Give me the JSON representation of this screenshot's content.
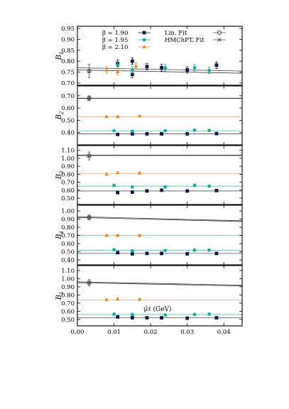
{
  "colors": {
    "b190": "#0b1640",
    "b195": "#1aa89a",
    "b210": "#e8851e",
    "fit": "#555555",
    "frame": "#000000"
  },
  "legend": {
    "entries": [
      {
        "label": "β = 1.90",
        "series": "b190",
        "marker": "square"
      },
      {
        "label": "β = 1.95",
        "series": "b195",
        "marker": "circle"
      },
      {
        "label": "β = 2.10",
        "series": "b210",
        "marker": "triangle"
      },
      {
        "label": "Lin. Fit",
        "series": "fit",
        "marker": "open-circle"
      },
      {
        "label": "HMChPT. Fit",
        "series": "fit",
        "marker": "cross"
      }
    ]
  },
  "chart_data": [
    {
      "type": "scatter",
      "ylabel": "B1",
      "ylim": [
        0.69,
        0.96
      ],
      "yticks": [
        "0.70",
        "0.75",
        "0.80",
        "0.85",
        "0.90",
        "0.95"
      ],
      "xlim": [
        0.0,
        0.045
      ],
      "xticks": [],
      "xlabel": "",
      "fit": {
        "x": [
          0.0,
          0.045
        ],
        "y": [
          0.77,
          0.755
        ],
        "y2": [
          0.76,
          0.745
        ]
      },
      "series": [
        {
          "name": "β = 1.90",
          "color_key": "b190",
          "marker": "square",
          "x": [
            0.011,
            0.015,
            0.015,
            0.019,
            0.023,
            0.03,
            0.038
          ],
          "y": [
            0.79,
            0.8,
            0.74,
            0.775,
            0.77,
            0.76,
            0.782
          ],
          "err": [
            0.015,
            0.015,
            0.015,
            0.015,
            0.015,
            0.015,
            0.015
          ]
        },
        {
          "name": "β = 1.95",
          "color_key": "b195",
          "marker": "circle",
          "x": [
            0.011,
            0.015,
            0.024,
            0.032,
            0.036
          ],
          "y": [
            0.782,
            0.76,
            0.77,
            0.77,
            0.758
          ],
          "err": [
            0.015,
            0.015,
            0.015,
            0.015,
            0.015
          ]
        },
        {
          "name": "β = 2.10",
          "color_key": "b210",
          "marker": "triangle",
          "x": [
            0.008,
            0.011,
            0.016
          ],
          "y": [
            0.76,
            0.752,
            0.778
          ],
          "err": [
            0.015,
            0.015,
            0.015
          ]
        },
        {
          "name": "",
          "color_key": "fit",
          "marker": "open-circle",
          "x": [
            0.0032
          ],
          "y": [
            0.755
          ],
          "err": [
            0.03
          ]
        }
      ]
    },
    {
      "type": "scatter",
      "ylabel": "B2",
      "ylim": [
        0.3,
        0.78
      ],
      "yticks": [
        "0.40",
        "0.50",
        "0.60",
        "0.70"
      ],
      "xlim": [
        0.0,
        0.045
      ],
      "xticks": [],
      "xlabel": "",
      "fit": {
        "x": [
          0.0,
          0.045
        ],
        "y": [
          0.68,
          0.68
        ],
        "y2": [
          0.678,
          0.678
        ]
      },
      "bands": [
        {
          "color_key": "b210",
          "y": 0.53
        },
        {
          "color_key": "b195",
          "y": 0.415
        },
        {
          "color_key": "b190",
          "y": 0.39
        }
      ],
      "series": [
        {
          "name": "β = 1.90",
          "color_key": "b190",
          "marker": "square",
          "x": [
            0.011,
            0.015,
            0.019,
            0.023,
            0.03,
            0.038
          ],
          "y": [
            0.385,
            0.39,
            0.39,
            0.39,
            0.39,
            0.392
          ],
          "err": [
            0.006,
            0.006,
            0.006,
            0.006,
            0.006,
            0.006
          ]
        },
        {
          "name": "β = 1.95",
          "color_key": "b195",
          "marker": "circle",
          "x": [
            0.01,
            0.015,
            0.024,
            0.032,
            0.036
          ],
          "y": [
            0.415,
            0.41,
            0.415,
            0.42,
            0.418
          ],
          "err": [
            0.006,
            0.006,
            0.006,
            0.006,
            0.006
          ]
        },
        {
          "name": "β = 2.10",
          "color_key": "b210",
          "marker": "triangle",
          "x": [
            0.008,
            0.011,
            0.017
          ],
          "y": [
            0.53,
            0.53,
            0.535
          ],
          "err": [
            0.006,
            0.006,
            0.006
          ]
        },
        {
          "name": "",
          "color_key": "fit",
          "marker": "open-circle",
          "x": [
            0.0032
          ],
          "y": [
            0.68
          ],
          "err": [
            0.02
          ]
        }
      ]
    },
    {
      "type": "scatter",
      "ylabel": "B3",
      "ylim": [
        0.42,
        1.16
      ],
      "yticks": [
        "0.50",
        "0.60",
        "0.70",
        "0.80",
        "0.90",
        "1.00",
        "1.10"
      ],
      "xlim": [
        0.0,
        0.045
      ],
      "xticks": [],
      "xlabel": "",
      "fit": {
        "x": [
          0.0,
          0.045
        ],
        "y": [
          1.04,
          1.04
        ],
        "y2": [
          1.035,
          1.035
        ]
      },
      "bands": [
        {
          "color_key": "b210",
          "y": 0.81
        },
        {
          "color_key": "b195",
          "y": 0.65
        },
        {
          "color_key": "b190",
          "y": 0.59
        }
      ],
      "series": [
        {
          "name": "β = 1.90",
          "color_key": "b190",
          "marker": "square",
          "x": [
            0.011,
            0.015,
            0.019,
            0.023,
            0.03,
            0.038
          ],
          "y": [
            0.57,
            0.575,
            0.59,
            0.6,
            0.59,
            0.595
          ],
          "err": [
            0.015,
            0.015,
            0.015,
            0.015,
            0.015,
            0.015
          ]
        },
        {
          "name": "β = 1.95",
          "color_key": "b195",
          "marker": "circle",
          "x": [
            0.01,
            0.015,
            0.024,
            0.032,
            0.036
          ],
          "y": [
            0.66,
            0.64,
            0.64,
            0.66,
            0.65
          ],
          "err": [
            0.015,
            0.015,
            0.015,
            0.015,
            0.015
          ]
        },
        {
          "name": "β = 2.10",
          "color_key": "b210",
          "marker": "triangle",
          "x": [
            0.008,
            0.011,
            0.017
          ],
          "y": [
            0.8,
            0.82,
            0.815
          ],
          "err": [
            0.015,
            0.015,
            0.015
          ]
        },
        {
          "name": "",
          "color_key": "fit",
          "marker": "open-circle",
          "x": [
            0.0032
          ],
          "y": [
            1.03
          ],
          "err": [
            0.05
          ]
        }
      ]
    },
    {
      "type": "scatter",
      "ylabel": "B4",
      "ylim": [
        0.34,
        1.07
      ],
      "yticks": [
        "0.40",
        "0.50",
        "0.60",
        "0.70",
        "0.80",
        "0.90",
        "1.00"
      ],
      "xlim": [
        0.0,
        0.045
      ],
      "xticks": [],
      "xlabel": "",
      "fit": {
        "x": [
          0.0,
          0.045
        ],
        "y": [
          0.93,
          0.88
        ],
        "y2": [
          0.92,
          0.87
        ]
      },
      "bands": [
        {
          "color_key": "b210",
          "y": 0.7
        },
        {
          "color_key": "b195",
          "y": 0.52
        },
        {
          "color_key": "b190",
          "y": 0.48
        }
      ],
      "series": [
        {
          "name": "β = 1.90",
          "color_key": "b190",
          "marker": "square",
          "x": [
            0.011,
            0.015,
            0.019,
            0.023,
            0.03,
            0.038
          ],
          "y": [
            0.49,
            0.475,
            0.48,
            0.48,
            0.475,
            0.48
          ],
          "err": [
            0.01,
            0.01,
            0.01,
            0.01,
            0.01,
            0.01
          ]
        },
        {
          "name": "β = 1.95",
          "color_key": "b195",
          "marker": "circle",
          "x": [
            0.01,
            0.015,
            0.024,
            0.032,
            0.036
          ],
          "y": [
            0.525,
            0.51,
            0.515,
            0.52,
            0.52
          ],
          "err": [
            0.01,
            0.01,
            0.01,
            0.01,
            0.01
          ]
        },
        {
          "name": "β = 2.10",
          "color_key": "b210",
          "marker": "triangle",
          "x": [
            0.008,
            0.011,
            0.017
          ],
          "y": [
            0.7,
            0.7,
            0.7
          ],
          "err": [
            0.01,
            0.01,
            0.01
          ]
        },
        {
          "name": "",
          "color_key": "fit",
          "marker": "open-circle",
          "x": [
            0.0032
          ],
          "y": [
            0.92
          ],
          "err": [
            0.03
          ]
        }
      ]
    },
    {
      "type": "scatter",
      "ylabel": "B5",
      "ylim": [
        0.42,
        1.16
      ],
      "yticks": [
        "0.50",
        "0.60",
        "0.70",
        "0.80",
        "0.90",
        "1.00",
        "1.10"
      ],
      "xlim": [
        0.0,
        0.045
      ],
      "xticks": [
        "0.00",
        "0.01",
        "0.02",
        "0.03",
        "0.04"
      ],
      "xtick_values": [
        0.0,
        0.01,
        0.02,
        0.03,
        0.04
      ],
      "xlabel": "μ̂ℓ (GeV)",
      "fit": {
        "x": [
          0.0,
          0.045
        ],
        "y": [
          0.96,
          0.92
        ],
        "y2": [
          0.95,
          0.91
        ]
      },
      "bands": [
        {
          "color_key": "b210",
          "y": 0.74
        },
        {
          "color_key": "b195",
          "y": 0.56
        },
        {
          "color_key": "b190",
          "y": 0.52
        }
      ],
      "series": [
        {
          "name": "β = 1.90",
          "color_key": "b190",
          "marker": "square",
          "x": [
            0.011,
            0.015,
            0.019,
            0.023,
            0.03,
            0.038
          ],
          "y": [
            0.53,
            0.52,
            0.52,
            0.52,
            0.515,
            0.52
          ],
          "err": [
            0.012,
            0.012,
            0.012,
            0.012,
            0.012,
            0.012
          ]
        },
        {
          "name": "β = 1.95",
          "color_key": "b195",
          "marker": "circle",
          "x": [
            0.01,
            0.015,
            0.024,
            0.032,
            0.036
          ],
          "y": [
            0.565,
            0.56,
            0.555,
            0.56,
            0.565
          ],
          "err": [
            0.012,
            0.012,
            0.012,
            0.012,
            0.012
          ]
        },
        {
          "name": "β = 2.10",
          "color_key": "b210",
          "marker": "triangle",
          "x": [
            0.008,
            0.011,
            0.017
          ],
          "y": [
            0.74,
            0.75,
            0.745
          ],
          "err": [
            0.012,
            0.012,
            0.012
          ]
        },
        {
          "name": "",
          "color_key": "fit",
          "marker": "open-circle",
          "x": [
            0.0032
          ],
          "y": [
            0.95
          ],
          "err": [
            0.04
          ]
        }
      ]
    }
  ]
}
